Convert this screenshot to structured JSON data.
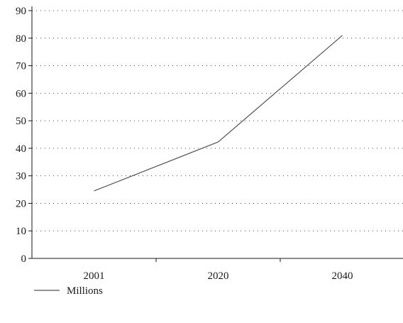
{
  "chart_data": {
    "type": "line",
    "title": "",
    "xlabel": "",
    "ylabel": "",
    "categories": [
      "2001",
      "2020",
      "2040"
    ],
    "series": [
      {
        "name": "Millions",
        "values": [
          24.5,
          42.3,
          81.0
        ],
        "color": "#555555"
      }
    ],
    "ylim": [
      0,
      90
    ],
    "yticks": [
      0,
      10,
      20,
      30,
      40,
      50,
      60,
      70,
      80,
      90
    ],
    "grid": "horizontal-dotted",
    "legend": "bottom-left"
  }
}
